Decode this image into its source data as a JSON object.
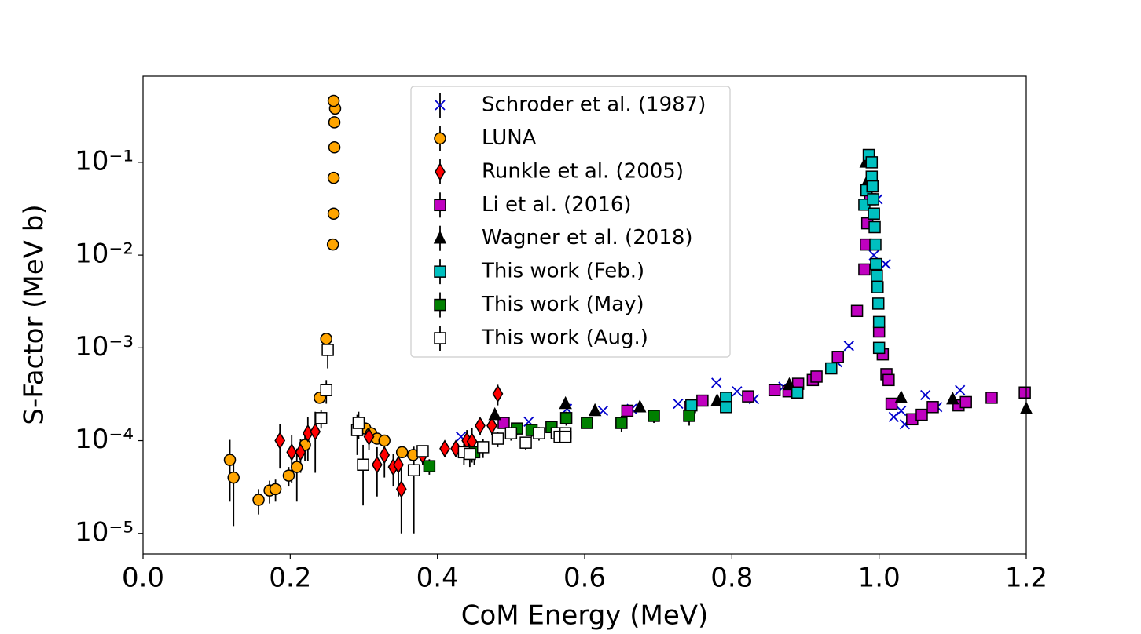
{
  "chart_data": {
    "type": "scatter",
    "xlabel": "CoM Energy (MeV)",
    "ylabel": "S-Factor (MeV b)",
    "xlim": [
      0,
      1.2
    ],
    "xticks": [
      {
        "value": 0,
        "label": "0.0"
      },
      0.2,
      0.4,
      0.6,
      0.8,
      {
        "value": 1,
        "label": "1.0"
      },
      1.2
    ],
    "ylim": [
      6e-06,
      0.85
    ],
    "log_y": true,
    "yticks": [
      {
        "value": 1e-05,
        "label": "10⁻⁵"
      },
      {
        "value": 0.0001,
        "label": "10⁻⁴"
      },
      {
        "value": 0.001,
        "label": "10⁻³"
      },
      {
        "value": 0.01,
        "label": "10⁻²"
      },
      {
        "value": 0.1,
        "label": "10⁻¹"
      }
    ],
    "legend": "upper center",
    "series": [
      {
        "name": "Schroder et al. (1987)",
        "color": "#0000cc",
        "marker": "x",
        "x": [
          0.432,
          0.524,
          0.576,
          0.625,
          0.664,
          0.727,
          0.779,
          0.807,
          0.83,
          0.87,
          0.943,
          0.959,
          0.97,
          0.993,
          0.998,
          1.009,
          1.02,
          1.03,
          1.035,
          1.063,
          1.079,
          1.11
        ],
        "values": [
          0.00011,
          0.00016,
          0.00022,
          0.00021,
          0.00022,
          0.00025,
          0.00042,
          0.00034,
          0.00028,
          0.00038,
          0.0007,
          0.00105,
          0.0025,
          0.01,
          0.04,
          0.008,
          0.00018,
          0.00021,
          0.00015,
          0.00031,
          0.00023,
          0.00035
        ]
      },
      {
        "name": "LUNA",
        "color": "#ffa500",
        "marker": "o",
        "x": [
          0.118,
          0.123,
          0.157,
          0.172,
          0.18,
          0.198,
          0.209,
          0.22,
          0.24,
          0.249,
          0.258,
          0.259,
          0.259,
          0.26,
          0.26,
          0.261,
          0.259,
          0.302,
          0.31,
          0.318,
          0.328,
          0.352,
          0.367
        ],
        "values": [
          6.2e-05,
          4e-05,
          2.3e-05,
          2.9e-05,
          3e-05,
          4.2e-05,
          5.2e-05,
          9e-05,
          0.00029,
          0.00125,
          0.013,
          0.028,
          0.068,
          0.145,
          0.27,
          0.38,
          0.46,
          0.000135,
          0.00012,
          0.000105,
          0.0001,
          7.5e-05,
          7e-05
        ],
        "yerr": [
          4e-05,
          2.8e-05,
          7e-06,
          8e-06,
          8e-06,
          1e-05,
          3e-05,
          3e-05,
          4e-05,
          0.0002,
          0.001,
          0.002,
          0.004,
          0.008,
          0.015,
          0.02,
          0.025,
          1.5e-05,
          1.5e-05,
          1e-05,
          1e-05,
          8e-06,
          8e-06
        ]
      },
      {
        "name": "Runkle et al. (2005)",
        "color": "#ff0000",
        "marker": "D",
        "x": [
          0.186,
          0.202,
          0.214,
          0.224,
          0.234,
          0.307,
          0.318,
          0.328,
          0.34,
          0.347,
          0.351,
          0.38,
          0.41,
          0.425,
          0.44,
          0.447,
          0.458,
          0.474,
          0.482
        ],
        "values": [
          0.0001,
          7.5e-05,
          7.5e-05,
          0.00012,
          0.000125,
          0.00011,
          5.5e-05,
          7e-05,
          5.2e-05,
          5.5e-05,
          3e-05,
          7e-05,
          8.2e-05,
          8.2e-05,
          0.0001,
          9.8e-05,
          0.000145,
          0.000145,
          0.00032
        ],
        "yerr": [
          5e-05,
          4e-05,
          3e-05,
          6e-05,
          8e-05,
          3e-05,
          3e-05,
          3e-05,
          2e-05,
          3e-05,
          2e-05,
          1.5e-05,
          1.5e-05,
          1.5e-05,
          3e-05,
          4e-05,
          3e-05,
          3e-05,
          8e-05
        ]
      },
      {
        "name": "Li et al. (2016)",
        "color": "#c000c0",
        "marker": "s",
        "x": [
          0.49,
          0.658,
          0.743,
          0.76,
          0.822,
          0.858,
          0.877,
          0.89,
          0.91,
          0.915,
          0.944,
          0.97,
          0.98,
          0.982,
          0.984,
          0.988,
          1.0,
          1.005,
          1.01,
          1.013,
          1.017,
          1.045,
          1.058,
          1.073,
          1.108,
          1.118,
          1.153,
          1.198
        ],
        "values": [
          0.000155,
          0.00021,
          0.00023,
          0.00027,
          0.0003,
          0.00035,
          0.00034,
          0.00041,
          0.00045,
          0.00049,
          0.0008,
          0.0025,
          0.007,
          0.013,
          0.022,
          0.04,
          0.0015,
          0.00085,
          0.00052,
          0.00045,
          0.00025,
          0.00017,
          0.00019,
          0.00023,
          0.00024,
          0.00026,
          0.00029,
          0.00033
        ]
      },
      {
        "name": "Wagner et al. (2018)",
        "color": "#000000",
        "marker": "^",
        "x": [
          0.478,
          0.574,
          0.614,
          0.675,
          0.78,
          0.878,
          0.982,
          0.983,
          1.03,
          1.1,
          1.2
        ],
        "values": [
          0.00019,
          0.00025,
          0.00021,
          0.00023,
          0.00027,
          0.0004,
          0.1,
          0.06,
          0.00029,
          0.00028,
          0.00022
        ]
      },
      {
        "name": "This work (Feb.)",
        "color": "#00c0c0",
        "marker": "s",
        "x": [
          0.745,
          0.792,
          0.792,
          0.889,
          0.935,
          0.98,
          0.983,
          0.986,
          0.99,
          0.99,
          0.991,
          0.992,
          0.993,
          0.994,
          0.995,
          0.996,
          0.997,
          0.998,
          0.999,
          1.0,
          1.0
        ],
        "values": [
          0.00024,
          0.00029,
          0.00023,
          0.00033,
          0.0006,
          0.035,
          0.05,
          0.12,
          0.1,
          0.07,
          0.055,
          0.04,
          0.028,
          0.02,
          0.013,
          0.008,
          0.006,
          0.0045,
          0.003,
          0.0019,
          0.001
        ]
      },
      {
        "name": "This work (May)",
        "color": "#008000",
        "marker": "s",
        "x": [
          0.389,
          0.45,
          0.508,
          0.528,
          0.555,
          0.575,
          0.603,
          0.65,
          0.694,
          0.742
        ],
        "values": [
          5.3e-05,
          7.5e-05,
          0.000135,
          0.00013,
          0.00014,
          0.000175,
          0.000155,
          0.000155,
          0.000185,
          0.000185
        ],
        "yerr": [
          1e-05,
          2e-05,
          2e-05,
          2e-05,
          2e-05,
          3e-05,
          2e-05,
          3e-05,
          3e-05,
          4e-05
        ]
      },
      {
        "name": "This work (Aug.)",
        "color": "#ffffff",
        "marker": "s",
        "x": [
          0.242,
          0.249,
          0.251,
          0.291,
          0.293,
          0.299,
          0.368,
          0.38,
          0.436,
          0.444,
          0.462,
          0.482,
          0.5,
          0.52,
          0.538,
          0.562,
          0.566,
          0.574,
          0.574
        ],
        "values": [
          0.000175,
          0.00035,
          0.00095,
          0.00013,
          0.000155,
          5.5e-05,
          4.8e-05,
          7.7e-05,
          7.5e-05,
          7.2e-05,
          8.5e-05,
          0.000105,
          0.00012,
          9.5e-05,
          0.00012,
          0.00012,
          0.00011,
          0.00012,
          0.00011
        ],
        "yerr": [
          4e-05,
          0.0001,
          0.00035,
          6e-05,
          5e-05,
          3.5e-05,
          3.8e-05,
          1e-05,
          2e-05,
          2e-05,
          2e-05,
          2e-05,
          2e-05,
          1.5e-05,
          2e-05,
          1.5e-05,
          1e-05,
          1.5e-05,
          1e-05
        ]
      }
    ]
  }
}
